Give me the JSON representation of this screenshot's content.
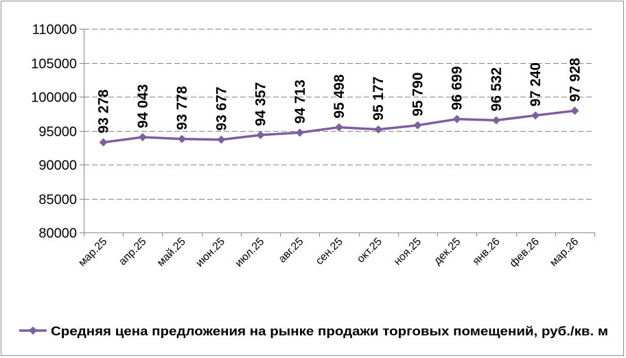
{
  "chart_data": {
    "type": "line",
    "categories": [
      "мар.25",
      "апр.25",
      "май.25",
      "июн.25",
      "июл.25",
      "авг.25",
      "сен.25",
      "окт.25",
      "ноя.25",
      "дек.25",
      "янв.26",
      "фев.26",
      "мар.26"
    ],
    "series": [
      {
        "name": "Средняя цена предложения на рынке продажи торговых помещений,  руб./кв. м",
        "values": [
          93278,
          94043,
          93778,
          93677,
          94357,
          94713,
          95498,
          95177,
          95790,
          96699,
          96532,
          97240,
          97928
        ],
        "data_labels": [
          "93 278",
          "94 043",
          "93 778",
          "93 677",
          "94 357",
          "94 713",
          "95 498",
          "95 177",
          "95 790",
          "96 699",
          "96 532",
          "97 240",
          "97 928"
        ],
        "color": "#7d5f9f",
        "marker": "diamond"
      }
    ],
    "ylim": [
      80000,
      110000
    ],
    "y_ticks": [
      80000,
      85000,
      90000,
      95000,
      100000,
      105000,
      110000
    ],
    "y_tick_labels": [
      "80000",
      "85000",
      "90000",
      "95000",
      "100000",
      "105000",
      "110000"
    ],
    "grid": true,
    "gridline_color": "#868686",
    "legend_position": "bottom",
    "title": "",
    "xlabel": "",
    "ylabel": ""
  }
}
